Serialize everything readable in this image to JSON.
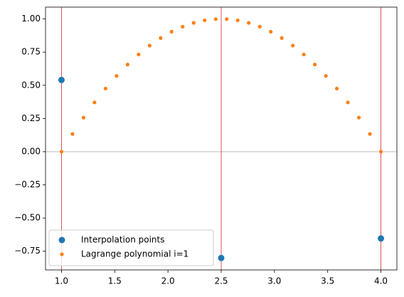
{
  "chart_data": {
    "type": "scatter",
    "series": [
      {
        "name": "Interpolation points",
        "color": "#1f77b4",
        "size": 4.5,
        "x": [
          1,
          2.5,
          4
        ],
        "values": [
          0.5403,
          -0.8011,
          -0.6536
        ]
      },
      {
        "name": "Lagrange polynomial i=1",
        "color": "#ff7f0e",
        "size": 2.6,
        "x": [
          1,
          1.1034,
          1.2069,
          1.3103,
          1.4138,
          1.5172,
          1.6207,
          1.7241,
          1.8276,
          1.931,
          2.0345,
          2.1379,
          2.2414,
          2.3448,
          2.4483,
          2.5517,
          2.6552,
          2.7586,
          2.8621,
          2.9655,
          3.069,
          3.1724,
          3.2759,
          3.3793,
          3.4828,
          3.5862,
          3.6897,
          3.7931,
          3.8966,
          4
        ],
        "values": [
          0,
          0.1332,
          0.2568,
          0.371,
          0.4756,
          0.5708,
          0.6564,
          0.7325,
          0.7991,
          0.8561,
          0.9037,
          0.9417,
          0.9703,
          0.9893,
          0.9988,
          0.9988,
          0.9893,
          0.9703,
          0.9417,
          0.9037,
          0.8561,
          0.7991,
          0.7325,
          0.6564,
          0.5708,
          0.4756,
          0.371,
          0.2568,
          0.1332,
          0
        ]
      }
    ],
    "vlines": [
      1,
      2.5,
      4
    ],
    "vline_color": "#d62728",
    "hline": 0,
    "hline_color": "#bbbbbb",
    "xlim": [
      0.85,
      4.15
    ],
    "ylim": [
      -0.891,
      1.089
    ],
    "xticks": [
      {
        "value": 1,
        "label": "1.0"
      },
      {
        "value": 1.5,
        "label": "1.5"
      },
      {
        "value": 2,
        "label": "2.0"
      },
      {
        "value": 2.5,
        "label": "2.5"
      },
      {
        "value": 3,
        "label": "3.0"
      },
      {
        "value": 3.5,
        "label": "3.5"
      },
      {
        "value": 4,
        "label": "4.0"
      }
    ],
    "yticks": [
      {
        "value": -0.75,
        "label": "−0.75"
      },
      {
        "value": -0.5,
        "label": "−0.50"
      },
      {
        "value": -0.25,
        "label": "−0.25"
      },
      {
        "value": 0,
        "label": "0.00"
      },
      {
        "value": 0.25,
        "label": "0.25"
      },
      {
        "value": 0.5,
        "label": "0.50"
      },
      {
        "value": 0.75,
        "label": "0.75"
      },
      {
        "value": 1,
        "label": "1.00"
      }
    ],
    "legend": "lower left"
  }
}
